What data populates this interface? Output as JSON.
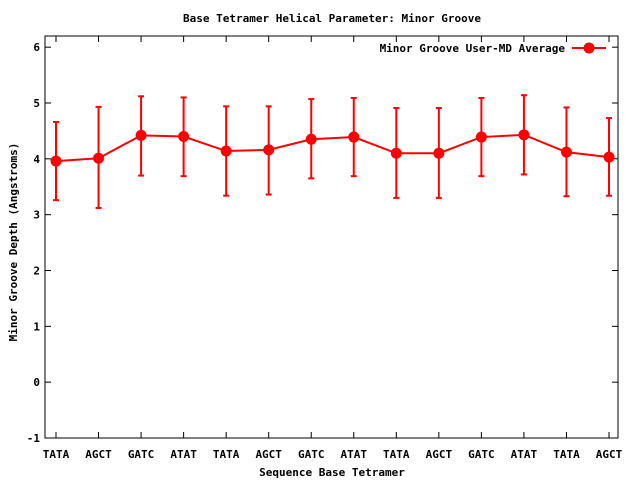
{
  "chart_data": {
    "type": "line",
    "title": "Base Tetramer Helical Parameter: Minor Groove",
    "xlabel": "Sequence Base Tetramer",
    "ylabel": "Minor Groove Depth (Angstroms)",
    "ylim": [
      -1,
      6.2
    ],
    "yticks": [
      -1,
      0,
      1,
      2,
      3,
      4,
      5,
      6
    ],
    "categories": [
      "TATA",
      "AGCT",
      "GATC",
      "ATAT",
      "TATA",
      "AGCT",
      "GATC",
      "ATAT",
      "TATA",
      "AGCT",
      "GATC",
      "ATAT",
      "TATA",
      "AGCT"
    ],
    "series": [
      {
        "name": "Minor Groove User-MD Average",
        "color": "#ff0000",
        "values": [
          3.96,
          4.01,
          4.42,
          4.4,
          4.14,
          4.16,
          4.35,
          4.39,
          4.1,
          4.1,
          4.39,
          4.43,
          4.12,
          4.03
        ],
        "error_low": [
          3.26,
          3.12,
          3.7,
          3.69,
          3.34,
          3.36,
          3.65,
          3.69,
          3.3,
          3.3,
          3.69,
          3.72,
          3.33,
          3.34
        ],
        "error_high": [
          4.66,
          4.93,
          5.12,
          5.1,
          4.94,
          4.94,
          5.07,
          5.09,
          4.91,
          4.91,
          5.09,
          5.14,
          4.92,
          4.73
        ]
      }
    ],
    "grid": false,
    "legend_position": "top-right"
  }
}
